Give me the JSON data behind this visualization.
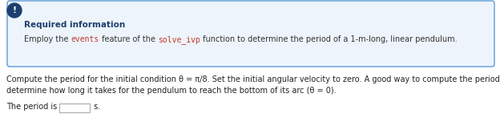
{
  "info_box_title": "Required information",
  "info_box_body": "Employ the ",
  "info_box_code1": "events",
  "info_box_mid1": " feature of the ",
  "info_box_code2": "solve_ivp",
  "info_box_end": " function to determine the period of a 1-m-long, linear pendulum.",
  "body_line1": "Compute the period for the initial condition θ = π/8. Set the initial angular velocity to zero. A good way to compute the period is to",
  "body_line2": "determine how long it takes for the pendulum to reach the bottom of its arc (θ = 0).",
  "answer_prefix": "The period is ",
  "answer_suffix": " s.",
  "icon_color": "#1c3f6e",
  "icon_text": "!",
  "box_border_color": "#5b9bd5",
  "box_bg_color": "#eef4fb",
  "title_color": "#1c3f6e",
  "code_color": "#c0392b",
  "normal_color": "#333333",
  "body_color": "#222222",
  "bg_color": "#ffffff",
  "input_box_color": "#aaaaaa"
}
